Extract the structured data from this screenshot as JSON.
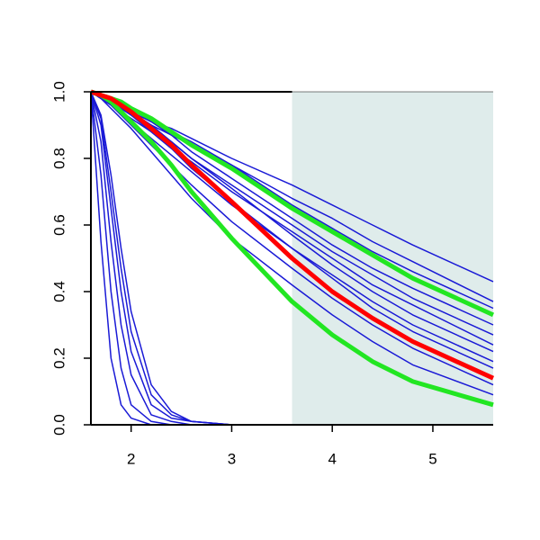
{
  "chart_data": {
    "type": "line",
    "x": [
      1.6,
      1.7,
      1.8,
      1.9,
      2.0,
      2.2,
      2.4,
      2.6,
      3.0,
      3.6,
      4.0,
      4.4,
      4.8,
      5.6
    ],
    "xlim": [
      1.6,
      5.6
    ],
    "ylim": [
      0,
      1
    ],
    "xticks": [
      2,
      3,
      4,
      5
    ],
    "yticks": [
      {
        "value": 0,
        "label": "0.0"
      },
      {
        "value": 0.2,
        "label": "0.2"
      },
      {
        "value": 0.4,
        "label": "0.4"
      },
      {
        "value": 0.6,
        "label": "0.6"
      },
      {
        "value": 0.8,
        "label": "0.8"
      },
      {
        "value": 1,
        "label": "1.0"
      }
    ],
    "shaded_region": [
      3.6,
      5.6
    ],
    "shade_color": "#dfeceb",
    "series": [
      {
        "color": "#1a1ad6",
        "width": 1.5,
        "values": [
          1,
          0.99,
          0.97,
          0.96,
          0.94,
          0.91,
          0.89,
          0.86,
          0.8,
          0.72,
          0.66,
          0.6,
          0.54,
          0.43
        ]
      },
      {
        "color": "#1a1ad6",
        "width": 1.5,
        "values": [
          1,
          0.98,
          0.97,
          0.95,
          0.93,
          0.9,
          0.87,
          0.84,
          0.78,
          0.68,
          0.62,
          0.55,
          0.49,
          0.37
        ]
      },
      {
        "color": "#1a1ad6",
        "width": 1.5,
        "values": [
          1,
          0.99,
          0.98,
          0.96,
          0.95,
          0.92,
          0.88,
          0.85,
          0.78,
          0.66,
          0.59,
          0.52,
          0.46,
          0.35
        ]
      },
      {
        "color": "#1a1ad6",
        "width": 1.5,
        "values": [
          1,
          0.99,
          0.98,
          0.96,
          0.95,
          0.91,
          0.87,
          0.82,
          0.74,
          0.62,
          0.54,
          0.47,
          0.41,
          0.3
        ]
      },
      {
        "color": "#1a1ad6",
        "width": 1.5,
        "values": [
          1,
          0.99,
          0.97,
          0.95,
          0.93,
          0.89,
          0.85,
          0.8,
          0.72,
          0.6,
          0.52,
          0.45,
          0.38,
          0.27
        ]
      },
      {
        "color": "#1a1ad6",
        "width": 1.5,
        "values": [
          1,
          0.98,
          0.96,
          0.94,
          0.92,
          0.88,
          0.83,
          0.79,
          0.7,
          0.58,
          0.5,
          0.42,
          0.36,
          0.24
        ]
      },
      {
        "color": "#1a1ad6",
        "width": 1.5,
        "values": [
          1,
          0.99,
          0.97,
          0.96,
          0.94,
          0.9,
          0.85,
          0.8,
          0.71,
          0.57,
          0.48,
          0.4,
          0.33,
          0.22
        ]
      },
      {
        "color": "#1a1ad6",
        "width": 1.5,
        "values": [
          1,
          0.98,
          0.96,
          0.94,
          0.91,
          0.86,
          0.81,
          0.76,
          0.66,
          0.53,
          0.45,
          0.37,
          0.3,
          0.19
        ]
      },
      {
        "color": "#1a1ad6",
        "width": 1.5,
        "values": [
          1,
          0.99,
          0.97,
          0.95,
          0.93,
          0.88,
          0.83,
          0.77,
          0.67,
          0.53,
          0.44,
          0.35,
          0.28,
          0.17
        ]
      },
      {
        "color": "#1a1ad6",
        "width": 1.5,
        "values": [
          1,
          0.98,
          0.96,
          0.93,
          0.9,
          0.84,
          0.78,
          0.72,
          0.61,
          0.47,
          0.38,
          0.3,
          0.23,
          0.12
        ]
      },
      {
        "color": "#1a1ad6",
        "width": 1.5,
        "values": [
          1,
          0.98,
          0.95,
          0.92,
          0.89,
          0.82,
          0.75,
          0.68,
          0.56,
          0.42,
          0.33,
          0.25,
          0.18,
          0.09
        ]
      },
      {
        "color": "#1a1ad6",
        "width": 1.5,
        "values": [
          1,
          0.55,
          0.2,
          0.06,
          0.02,
          0,
          0,
          0,
          0,
          0,
          0,
          0,
          0,
          0
        ]
      },
      {
        "color": "#1a1ad6",
        "width": 1.5,
        "values": [
          1,
          0.75,
          0.4,
          0.17,
          0.06,
          0.01,
          0,
          0,
          0,
          0,
          0,
          0,
          0,
          0
        ]
      },
      {
        "color": "#1a1ad6",
        "width": 1.5,
        "values": [
          1,
          0.85,
          0.55,
          0.3,
          0.15,
          0.03,
          0.01,
          0,
          0,
          0,
          0,
          0,
          0,
          0
        ]
      },
      {
        "color": "#1a1ad6",
        "width": 1.5,
        "values": [
          1,
          0.9,
          0.65,
          0.4,
          0.22,
          0.06,
          0.02,
          0.01,
          0,
          0,
          0,
          0,
          0,
          0
        ]
      },
      {
        "color": "#1a1ad6",
        "width": 1.5,
        "values": [
          1,
          0.92,
          0.7,
          0.47,
          0.28,
          0.09,
          0.03,
          0.01,
          0,
          0,
          0,
          0,
          0,
          0
        ]
      },
      {
        "color": "#1a1ad6",
        "width": 1.5,
        "values": [
          1,
          0.93,
          0.75,
          0.53,
          0.34,
          0.12,
          0.04,
          0.01,
          0,
          0,
          0,
          0,
          0,
          0
        ]
      },
      {
        "color": "#22e622",
        "width": 5,
        "values": [
          1,
          0.99,
          0.97,
          0.94,
          0.91,
          0.85,
          0.78,
          0.7,
          0.56,
          0.37,
          0.27,
          0.19,
          0.13,
          0.06
        ]
      },
      {
        "color": "#22e622",
        "width": 5,
        "values": [
          1,
          0.99,
          0.98,
          0.97,
          0.95,
          0.92,
          0.88,
          0.84,
          0.77,
          0.65,
          0.58,
          0.51,
          0.44,
          0.33
        ]
      },
      {
        "color": "#ff0000",
        "width": 5,
        "values": [
          1,
          0.99,
          0.98,
          0.96,
          0.94,
          0.89,
          0.84,
          0.78,
          0.67,
          0.5,
          0.4,
          0.32,
          0.25,
          0.14
        ]
      }
    ]
  }
}
